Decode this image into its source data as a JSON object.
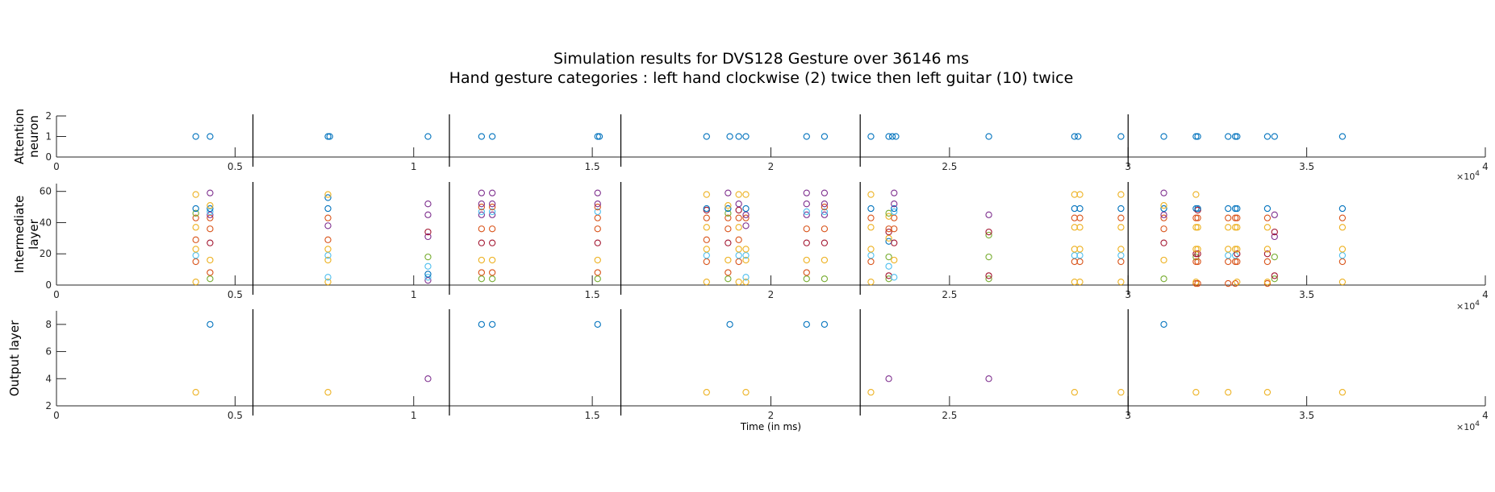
{
  "figure": {
    "title_line1": "Simulation results for DVS128 Gesture over 36146 ms",
    "title_line2": "Hand gesture categories : left hand clockwise (2) twice then left guitar (10) twice"
  },
  "palette": [
    "#0072BD",
    "#D95319",
    "#EDB120",
    "#7E2F8E",
    "#77AC30",
    "#4DBEEE",
    "#A2142F"
  ],
  "chart_data": [
    {
      "type": "scatter",
      "ylabel": "Attention\nneuron",
      "xlim": [
        0,
        40000
      ],
      "ylim": [
        0,
        2
      ],
      "xticks": [
        0,
        5000,
        10000,
        15000,
        20000,
        25000,
        30000,
        35000,
        40000
      ],
      "xticklabels": [
        "0",
        "0.5",
        "1",
        "1.5",
        "2",
        "2.5",
        "3",
        "3.5",
        "4"
      ],
      "yticks": [
        0,
        1,
        2
      ],
      "yticklabels": [
        "0",
        "1",
        "2"
      ],
      "exponent": "×10^4",
      "grid": false,
      "marker": "circle",
      "points": [
        {
          "x": 3900,
          "y": 1,
          "c": 0
        },
        {
          "x": 4300,
          "y": 1,
          "c": 0
        },
        {
          "x": 7600,
          "y": 1,
          "c": 0
        },
        {
          "x": 7650,
          "y": 1,
          "c": 0
        },
        {
          "x": 10400,
          "y": 1,
          "c": 0
        },
        {
          "x": 11900,
          "y": 1,
          "c": 0
        },
        {
          "x": 12200,
          "y": 1,
          "c": 0
        },
        {
          "x": 15150,
          "y": 1,
          "c": 0
        },
        {
          "x": 15200,
          "y": 1,
          "c": 0
        },
        {
          "x": 18200,
          "y": 1,
          "c": 0
        },
        {
          "x": 18850,
          "y": 1,
          "c": 0
        },
        {
          "x": 19100,
          "y": 1,
          "c": 0
        },
        {
          "x": 19300,
          "y": 1,
          "c": 0
        },
        {
          "x": 21000,
          "y": 1,
          "c": 0
        },
        {
          "x": 21500,
          "y": 1,
          "c": 0
        },
        {
          "x": 22800,
          "y": 1,
          "c": 0
        },
        {
          "x": 23300,
          "y": 1,
          "c": 0
        },
        {
          "x": 23400,
          "y": 1,
          "c": 0
        },
        {
          "x": 23500,
          "y": 1,
          "c": 0
        },
        {
          "x": 26100,
          "y": 1,
          "c": 0
        },
        {
          "x": 28500,
          "y": 1,
          "c": 0
        },
        {
          "x": 28600,
          "y": 1,
          "c": 0
        },
        {
          "x": 29800,
          "y": 1,
          "c": 0
        },
        {
          "x": 31000,
          "y": 1,
          "c": 0
        },
        {
          "x": 31900,
          "y": 1,
          "c": 0
        },
        {
          "x": 31950,
          "y": 1,
          "c": 0
        },
        {
          "x": 32800,
          "y": 1,
          "c": 0
        },
        {
          "x": 33000,
          "y": 1,
          "c": 0
        },
        {
          "x": 33050,
          "y": 1,
          "c": 0
        },
        {
          "x": 33900,
          "y": 1,
          "c": 0
        },
        {
          "x": 34100,
          "y": 1,
          "c": 0
        },
        {
          "x": 36000,
          "y": 1,
          "c": 0
        }
      ]
    },
    {
      "type": "scatter",
      "ylabel": "Intermediate\nlayer",
      "xlim": [
        0,
        40000
      ],
      "ylim": [
        0,
        65
      ],
      "xticks": [
        0,
        5000,
        10000,
        15000,
        20000,
        25000,
        30000,
        35000,
        40000
      ],
      "xticklabels": [
        "0",
        "0.5",
        "1",
        "1.5",
        "2",
        "2.5",
        "3",
        "3.5",
        "4"
      ],
      "yticks": [
        0,
        20,
        40,
        60
      ],
      "yticklabels": [
        "0",
        "20",
        "40",
        "60"
      ],
      "exponent": "×10^4",
      "grid": false,
      "marker": "circle",
      "columns": [
        {
          "x": 3900,
          "ys": [
            2,
            15,
            19,
            23,
            29,
            37,
            43,
            46,
            49,
            58
          ]
        },
        {
          "x": 4300,
          "ys": [
            4,
            8,
            16,
            27,
            36,
            43,
            45,
            47,
            49,
            51,
            59
          ]
        },
        {
          "x": 7600,
          "ys": [
            2,
            5,
            16,
            19,
            23,
            29,
            38,
            43,
            49,
            56,
            58
          ]
        },
        {
          "x": 10400,
          "ys": [
            3,
            5,
            7,
            12,
            18,
            31,
            34,
            45,
            52
          ]
        },
        {
          "x": 11900,
          "ys": [
            4,
            8,
            16,
            27,
            36,
            45,
            47,
            50,
            52,
            59
          ]
        },
        {
          "x": 12200,
          "ys": [
            4,
            8,
            16,
            27,
            36,
            45,
            47,
            50,
            52,
            59
          ]
        },
        {
          "x": 15150,
          "ys": [
            4,
            8,
            16,
            27,
            36,
            43,
            47,
            50,
            52,
            59
          ]
        },
        {
          "x": 18200,
          "ys": [
            2,
            15,
            19,
            23,
            29,
            37,
            43,
            48,
            49,
            58
          ]
        },
        {
          "x": 18800,
          "ys": [
            4,
            8,
            16,
            27,
            36,
            43,
            46,
            49,
            51,
            59
          ]
        },
        {
          "x": 19100,
          "ys": [
            2,
            15,
            19,
            23,
            29,
            37,
            43,
            48,
            52,
            58
          ]
        },
        {
          "x": 19300,
          "ys": [
            2,
            5,
            16,
            19,
            23,
            38,
            43,
            45,
            49,
            58
          ]
        },
        {
          "x": 21000,
          "ys": [
            4,
            8,
            16,
            27,
            36,
            45,
            47,
            52,
            59
          ]
        },
        {
          "x": 21500,
          "ys": [
            4,
            16,
            27,
            36,
            45,
            47,
            50,
            52,
            59
          ]
        },
        {
          "x": 22800,
          "ys": [
            2,
            15,
            19,
            23,
            37,
            43,
            49,
            58
          ]
        },
        {
          "x": 23300,
          "ys": [
            4,
            6,
            12,
            18,
            28,
            30,
            34,
            36,
            44,
            46
          ]
        },
        {
          "x": 23450,
          "ys": [
            5,
            16,
            27,
            36,
            43,
            47,
            49,
            52,
            59
          ]
        },
        {
          "x": 26100,
          "ys": [
            4,
            6,
            18,
            32,
            34,
            45
          ]
        },
        {
          "x": 28500,
          "ys": [
            2,
            15,
            19,
            23,
            37,
            43,
            49,
            58
          ]
        },
        {
          "x": 28650,
          "ys": [
            2,
            15,
            19,
            23,
            37,
            43,
            49,
            58
          ]
        },
        {
          "x": 29800,
          "ys": [
            2,
            15,
            19,
            23,
            37,
            43,
            49,
            58
          ]
        },
        {
          "x": 31000,
          "ys": [
            4,
            16,
            27,
            36,
            43,
            45,
            49,
            51,
            59
          ]
        },
        {
          "x": 31900,
          "ys": [
            1,
            2,
            15,
            18,
            20,
            23,
            37,
            43,
            49,
            58
          ]
        },
        {
          "x": 31950,
          "ys": [
            1,
            15,
            20,
            23,
            37,
            43,
            48,
            49
          ]
        },
        {
          "x": 32800,
          "ys": [
            1,
            15,
            19,
            23,
            37,
            43,
            49
          ]
        },
        {
          "x": 33000,
          "ys": [
            1,
            15,
            19,
            23,
            37,
            43,
            49
          ]
        },
        {
          "x": 33050,
          "ys": [
            2,
            15,
            20,
            23,
            37,
            43,
            49
          ]
        },
        {
          "x": 33900,
          "ys": [
            1,
            2,
            15,
            20,
            23,
            37,
            43,
            49
          ]
        },
        {
          "x": 34100,
          "ys": [
            4,
            6,
            18,
            31,
            34,
            45
          ]
        },
        {
          "x": 36000,
          "ys": [
            2,
            15,
            19,
            23,
            37,
            43,
            49
          ]
        }
      ]
    },
    {
      "type": "scatter",
      "ylabel": "Output layer",
      "xlabel": "Time (in ms)",
      "xlim": [
        0,
        40000
      ],
      "ylim": [
        2,
        9
      ],
      "xticks": [
        0,
        5000,
        10000,
        15000,
        20000,
        25000,
        30000,
        35000,
        40000
      ],
      "xticklabels": [
        "0",
        "0.5",
        "1",
        "1.5",
        "2",
        "2.5",
        "3",
        "3.5",
        "4"
      ],
      "yticks": [
        2,
        4,
        6,
        8
      ],
      "yticklabels": [
        "2",
        "4",
        "6",
        "8"
      ],
      "exponent": "×10^4",
      "grid": false,
      "marker": "circle",
      "points": [
        {
          "x": 3900,
          "y": 3,
          "c": 2
        },
        {
          "x": 4300,
          "y": 8,
          "c": 0
        },
        {
          "x": 7600,
          "y": 3,
          "c": 2
        },
        {
          "x": 10400,
          "y": 4,
          "c": 3
        },
        {
          "x": 11900,
          "y": 8,
          "c": 0
        },
        {
          "x": 12200,
          "y": 8,
          "c": 0
        },
        {
          "x": 15150,
          "y": 8,
          "c": 0
        },
        {
          "x": 18200,
          "y": 3,
          "c": 2
        },
        {
          "x": 18850,
          "y": 8,
          "c": 0
        },
        {
          "x": 19300,
          "y": 3,
          "c": 2
        },
        {
          "x": 21000,
          "y": 8,
          "c": 0
        },
        {
          "x": 21500,
          "y": 8,
          "c": 0
        },
        {
          "x": 22800,
          "y": 3,
          "c": 2
        },
        {
          "x": 23300,
          "y": 4,
          "c": 3
        },
        {
          "x": 26100,
          "y": 4,
          "c": 3
        },
        {
          "x": 28500,
          "y": 3,
          "c": 2
        },
        {
          "x": 29800,
          "y": 3,
          "c": 2
        },
        {
          "x": 31000,
          "y": 8,
          "c": 0
        },
        {
          "x": 31900,
          "y": 3,
          "c": 2
        },
        {
          "x": 32800,
          "y": 3,
          "c": 2
        },
        {
          "x": 33900,
          "y": 3,
          "c": 2
        },
        {
          "x": 36000,
          "y": 3,
          "c": 2
        }
      ]
    }
  ],
  "separators_x": [
    5500,
    11000,
    15800,
    22500,
    30000
  ]
}
